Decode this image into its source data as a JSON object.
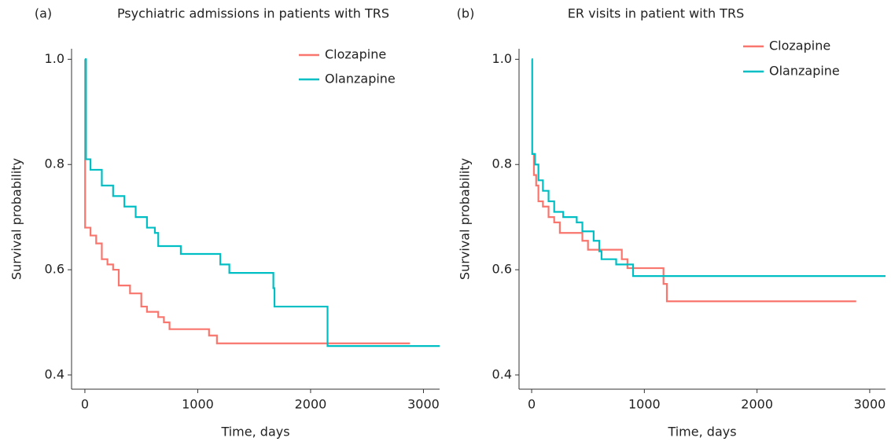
{
  "chart_data": [
    {
      "type": "step",
      "panel_label": "(a)",
      "title": "Psychiatric admissions in patients with TRS",
      "x_label": "Time, days",
      "y_label": "Survival probability",
      "xlim": [
        -118,
        3143
      ],
      "ylim": [
        0.373,
        1.02
      ],
      "xticks": [
        0,
        1000,
        2000,
        3000
      ],
      "yticks": [
        0.4,
        0.6,
        0.8,
        {
          "value": 1,
          "label": "1.0"
        }
      ],
      "grid": false,
      "legend": "upper right",
      "series": [
        {
          "name": "Clozapine",
          "color": "#F8766D",
          "x": [
            0,
            2,
            50,
            100,
            150,
            200,
            250,
            300,
            400,
            500,
            550,
            650,
            700,
            750,
            1100,
            1170,
            2880
          ],
          "values": [
            1.0,
            0.68,
            0.665,
            0.65,
            0.62,
            0.61,
            0.6,
            0.57,
            0.555,
            0.53,
            0.52,
            0.51,
            0.5,
            0.487,
            0.475,
            0.46,
            0.46
          ]
        },
        {
          "name": "Olanzapine",
          "color": "#00BFC4",
          "x": [
            0,
            10,
            50,
            150,
            250,
            350,
            450,
            550,
            620,
            650,
            850,
            1200,
            1280,
            1670,
            1680,
            2150,
            3143
          ],
          "values": [
            1.0,
            0.81,
            0.79,
            0.76,
            0.74,
            0.72,
            0.7,
            0.68,
            0.67,
            0.645,
            0.63,
            0.61,
            0.594,
            0.565,
            0.53,
            0.455,
            0.455
          ]
        }
      ]
    },
    {
      "type": "step",
      "panel_label": "(b)",
      "title": "ER visits in patient with TRS",
      "x_label": "Time, days",
      "y_label": "Survival probability",
      "xlim": [
        -112,
        3140
      ],
      "ylim": [
        0.373,
        1.02
      ],
      "xticks": [
        0,
        1000,
        2000,
        3000
      ],
      "yticks": [
        0.4,
        0.6,
        0.8,
        {
          "value": 1,
          "label": "1.0"
        }
      ],
      "grid": false,
      "legend": "upper right",
      "series": [
        {
          "name": "Clozapine",
          "color": "#F8766D",
          "x": [
            0,
            20,
            40,
            60,
            100,
            150,
            200,
            250,
            450,
            500,
            800,
            850,
            1170,
            1200,
            2880
          ],
          "values": [
            0.82,
            0.78,
            0.76,
            0.73,
            0.72,
            0.7,
            0.69,
            0.67,
            0.655,
            0.638,
            0.62,
            0.603,
            0.573,
            0.54,
            0.54
          ]
        },
        {
          "name": "Olanzapine",
          "color": "#00BFC4",
          "x": [
            0,
            5,
            30,
            60,
            100,
            150,
            200,
            280,
            400,
            450,
            550,
            600,
            620,
            750,
            900,
            3140
          ],
          "values": [
            1.0,
            0.82,
            0.8,
            0.77,
            0.75,
            0.73,
            0.71,
            0.7,
            0.69,
            0.673,
            0.655,
            0.635,
            0.62,
            0.61,
            0.588,
            0.588
          ]
        }
      ]
    }
  ]
}
